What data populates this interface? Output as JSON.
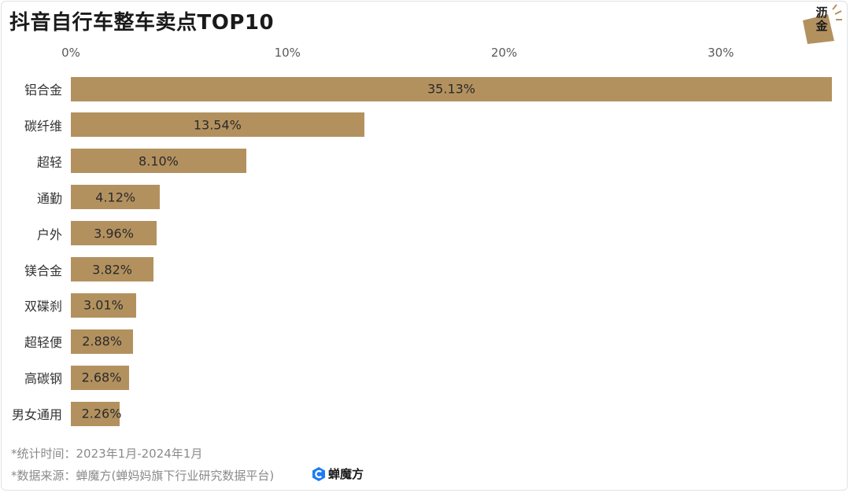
{
  "title": "抖音自行车整车卖点TOP10",
  "logo": {
    "text": "沥金"
  },
  "footnotes": {
    "period": "*统计时间：2023年1月-2024年1月",
    "source": "*数据来源：蝉魔方(蝉妈妈旗下行业研究数据平台)"
  },
  "brand": {
    "name": "蝉魔方",
    "icon": "cmf-logo-icon",
    "color": "#1e7cf2"
  },
  "colors": {
    "bar": "#b3915f"
  },
  "chart_data": {
    "type": "bar",
    "orientation": "horizontal",
    "title": "抖音自行车整车卖点TOP10",
    "xlim": [
      0,
      35.13
    ],
    "ticks": [
      "0%",
      "10%",
      "20%",
      "30%"
    ],
    "tick_values": [
      0,
      10,
      20,
      30
    ],
    "categories": [
      "铝合金",
      "碳纤维",
      "超轻",
      "通勤",
      "户外",
      "镁合金",
      "双碟刹",
      "超轻便",
      "高碳钢",
      "男女通用"
    ],
    "values": [
      35.13,
      13.54,
      8.1,
      4.12,
      3.96,
      3.82,
      3.01,
      2.88,
      2.68,
      2.26
    ],
    "value_labels": [
      "35.13%",
      "13.54%",
      "8.10%",
      "4.12%",
      "3.96%",
      "3.82%",
      "3.01%",
      "2.88%",
      "2.68%",
      "2.26%"
    ]
  }
}
